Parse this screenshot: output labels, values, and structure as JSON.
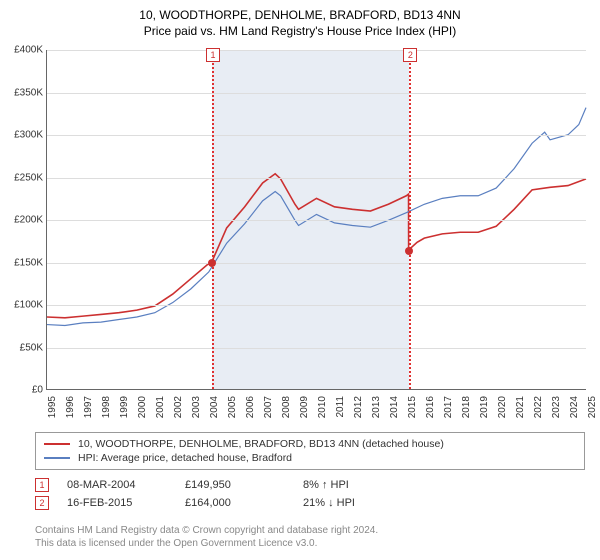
{
  "title_line1": "10, WOODTHORPE, DENHOLME, BRADFORD, BD13 4NN",
  "title_line2": "Price paid vs. HM Land Registry's House Price Index (HPI)",
  "chart": {
    "type": "line",
    "background_color": "#ffffff",
    "grid_color": "#dddddd",
    "shade_color": "#e8edf4",
    "axis_color": "#666666",
    "xmin": 1995,
    "xmax": 2025,
    "ymin": 0,
    "ymax": 400000,
    "ytick_step": 50000,
    "yticks": [
      "£0",
      "£50K",
      "£100K",
      "£150K",
      "£200K",
      "£250K",
      "£300K",
      "£350K",
      "£400K"
    ],
    "xticks": [
      1995,
      1996,
      1997,
      1998,
      1999,
      2000,
      2001,
      2002,
      2003,
      2004,
      2005,
      2006,
      2007,
      2008,
      2009,
      2010,
      2011,
      2012,
      2013,
      2014,
      2015,
      2016,
      2017,
      2018,
      2019,
      2020,
      2021,
      2022,
      2023,
      2024,
      2025
    ],
    "shade_ranges": [
      [
        2004.17,
        2015.13
      ]
    ],
    "series": [
      {
        "name": "red",
        "color": "#cc3030",
        "width": 1.6,
        "label": "10, WOODTHORPE, DENHOLME, BRADFORD, BD13 4NN (detached house)",
        "points": [
          [
            1995,
            85000
          ],
          [
            1996,
            84000
          ],
          [
            1997,
            86000
          ],
          [
            1998,
            88000
          ],
          [
            1999,
            90000
          ],
          [
            2000,
            93000
          ],
          [
            2001,
            98000
          ],
          [
            2002,
            112000
          ],
          [
            2003,
            130000
          ],
          [
            2004,
            148000
          ],
          [
            2004.17,
            149950
          ],
          [
            2005,
            190000
          ],
          [
            2006,
            215000
          ],
          [
            2007,
            243000
          ],
          [
            2007.7,
            254000
          ],
          [
            2008,
            248000
          ],
          [
            2008.8,
            218000
          ],
          [
            2009,
            212000
          ],
          [
            2010,
            225000
          ],
          [
            2011,
            215000
          ],
          [
            2012,
            212000
          ],
          [
            2013,
            210000
          ],
          [
            2014,
            218000
          ],
          [
            2015,
            228000
          ],
          [
            2015.12,
            230000
          ],
          [
            2015.13,
            164000
          ],
          [
            2015.6,
            173000
          ],
          [
            2016,
            178000
          ],
          [
            2017,
            183000
          ],
          [
            2018,
            185000
          ],
          [
            2019,
            185000
          ],
          [
            2020,
            192000
          ],
          [
            2021,
            212000
          ],
          [
            2022,
            235000
          ],
          [
            2023,
            238000
          ],
          [
            2024,
            240000
          ],
          [
            2025,
            248000
          ]
        ]
      },
      {
        "name": "blue",
        "color": "#5a7fc0",
        "width": 1.2,
        "label": "HPI: Average price, detached house, Bradford",
        "points": [
          [
            1995,
            76000
          ],
          [
            1996,
            75000
          ],
          [
            1997,
            78000
          ],
          [
            1998,
            79000
          ],
          [
            1999,
            82000
          ],
          [
            2000,
            85000
          ],
          [
            2001,
            90000
          ],
          [
            2002,
            102000
          ],
          [
            2003,
            118000
          ],
          [
            2004,
            138000
          ],
          [
            2005,
            172000
          ],
          [
            2006,
            195000
          ],
          [
            2007,
            222000
          ],
          [
            2007.7,
            233000
          ],
          [
            2008,
            228000
          ],
          [
            2008.8,
            199000
          ],
          [
            2009,
            193000
          ],
          [
            2010,
            206000
          ],
          [
            2011,
            196000
          ],
          [
            2012,
            193000
          ],
          [
            2013,
            191000
          ],
          [
            2014,
            199000
          ],
          [
            2015,
            208000
          ],
          [
            2016,
            218000
          ],
          [
            2017,
            225000
          ],
          [
            2018,
            228000
          ],
          [
            2019,
            228000
          ],
          [
            2020,
            237000
          ],
          [
            2021,
            260000
          ],
          [
            2022,
            290000
          ],
          [
            2022.7,
            303000
          ],
          [
            2023,
            294000
          ],
          [
            2024,
            300000
          ],
          [
            2024.6,
            312000
          ],
          [
            2025,
            332000
          ]
        ]
      }
    ],
    "vlines": [
      {
        "x": 2004.17,
        "label": "1",
        "dot_y": 149950
      },
      {
        "x": 2015.13,
        "label": "2",
        "dot_y": 164000
      }
    ]
  },
  "legend": {
    "border_color": "#999999"
  },
  "transactions": [
    {
      "n": "1",
      "date": "08-MAR-2004",
      "price": "£149,950",
      "delta": "8% ↑ HPI"
    },
    {
      "n": "2",
      "date": "16-FEB-2015",
      "price": "£164,000",
      "delta": "21% ↓ HPI"
    }
  ],
  "copyright_line1": "Contains HM Land Registry data © Crown copyright and database right 2024.",
  "copyright_line2": "This data is licensed under the Open Government Licence v3.0."
}
